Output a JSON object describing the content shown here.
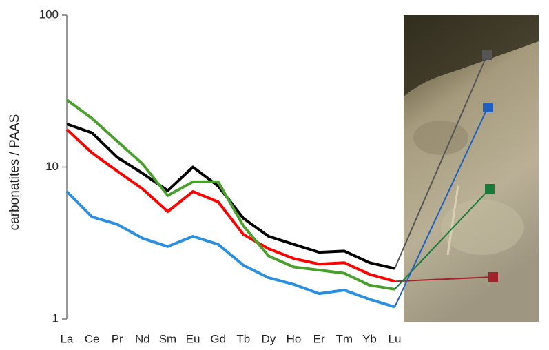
{
  "chart_data": {
    "type": "line",
    "y_label": "carbonatites  / PAAS",
    "categories": [
      "La",
      "Ce",
      "Pr",
      "Nd",
      "Sm",
      "Eu",
      "Gd",
      "Tb",
      "Dy",
      "Ho",
      "Er",
      "Tm",
      "Yb",
      "Lu"
    ],
    "log_scale": true,
    "ylim": [
      1,
      100
    ],
    "yticks": [
      1,
      10,
      100
    ],
    "series": [
      {
        "color": "#000000",
        "connector_color": "#555555",
        "values": [
          19.2,
          16.8,
          11.6,
          9.1,
          7.0,
          10.0,
          7.5,
          4.6,
          3.5,
          3.1,
          2.75,
          2.8,
          2.35,
          2.15
        ]
      },
      {
        "color": "#ff0000",
        "connector_color": "#a0232a",
        "values": [
          17.7,
          12.4,
          9.4,
          7.2,
          5.1,
          6.9,
          5.9,
          3.6,
          2.9,
          2.5,
          2.3,
          2.35,
          1.97,
          1.77
        ]
      },
      {
        "color": "#4aa02c",
        "connector_color": "#1a7a3a",
        "values": [
          27.7,
          20.9,
          14.8,
          10.5,
          6.5,
          8.0,
          8.0,
          4.1,
          2.6,
          2.2,
          2.1,
          2.0,
          1.67,
          1.57
        ]
      },
      {
        "color": "#2a8fe0",
        "connector_color": "#1f5fbf",
        "values": [
          6.9,
          4.7,
          4.2,
          3.4,
          3.0,
          3.5,
          3.1,
          2.26,
          1.87,
          1.69,
          1.47,
          1.55,
          1.35,
          1.2
        ]
      }
    ]
  }
}
